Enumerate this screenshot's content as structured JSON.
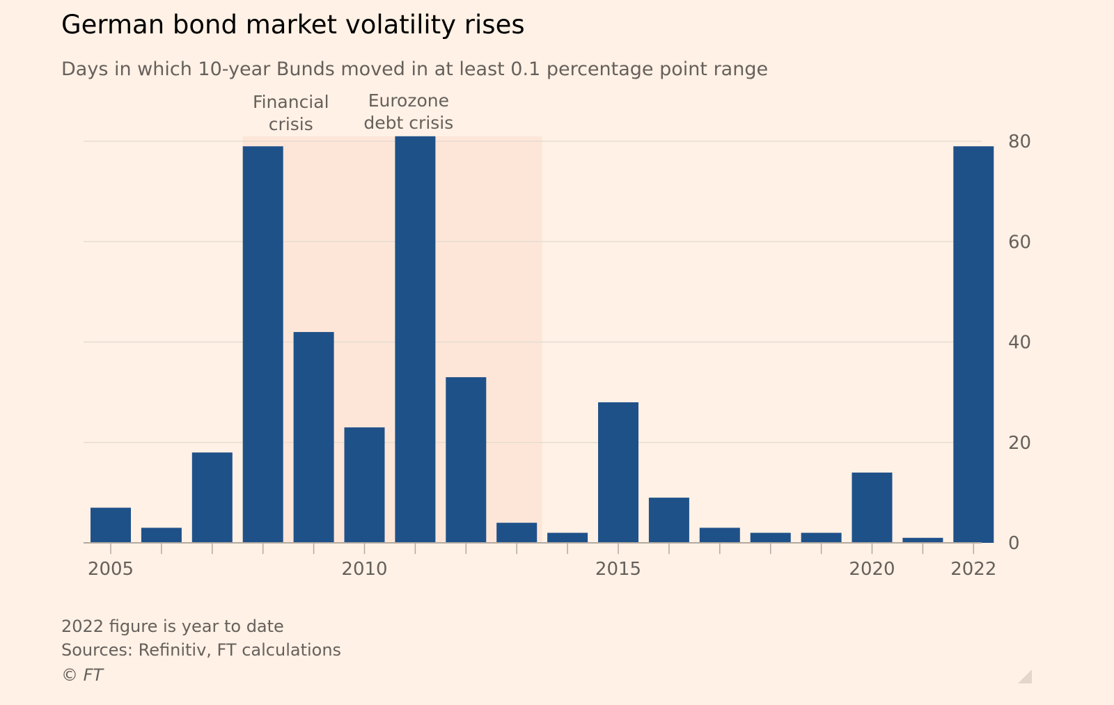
{
  "header": {
    "title": "German bond market volatility rises",
    "subtitle": "Days in which 10-year Bunds moved in at least 0.1 percentage point range"
  },
  "footer": {
    "note": "2022 figure is year to date",
    "source": "Sources: Refinitiv, FT calculations",
    "copyright": "© FT"
  },
  "colors": {
    "background": "#fff1e5",
    "bar": "#1f5189",
    "shade": "#fde4d6",
    "grid": "#e6dcd2"
  },
  "chart_data": {
    "type": "bar",
    "categories": [
      "2005",
      "2006",
      "2007",
      "2008",
      "2009",
      "2010",
      "2011",
      "2012",
      "2013",
      "2014",
      "2015",
      "2016",
      "2017",
      "2018",
      "2019",
      "2020",
      "2021",
      "2022"
    ],
    "values": [
      7,
      3,
      18,
      79,
      42,
      23,
      81,
      33,
      4,
      2,
      28,
      9,
      3,
      2,
      2,
      14,
      1,
      79
    ],
    "x_tick_labels": [
      "2005",
      "2010",
      "2015",
      "2020",
      "2022"
    ],
    "y_ticks": [
      0,
      20,
      40,
      60,
      80
    ],
    "ylim": [
      0,
      80
    ],
    "y_axis_side": "right",
    "grid": true,
    "shaded_periods": [
      {
        "label": [
          "Financial",
          "crisis"
        ],
        "from": 2007.6,
        "to": 2009.5
      },
      {
        "label": [
          "Eurozone",
          "debt crisis"
        ],
        "from": 2009.5,
        "to": 2013.5
      }
    ]
  }
}
